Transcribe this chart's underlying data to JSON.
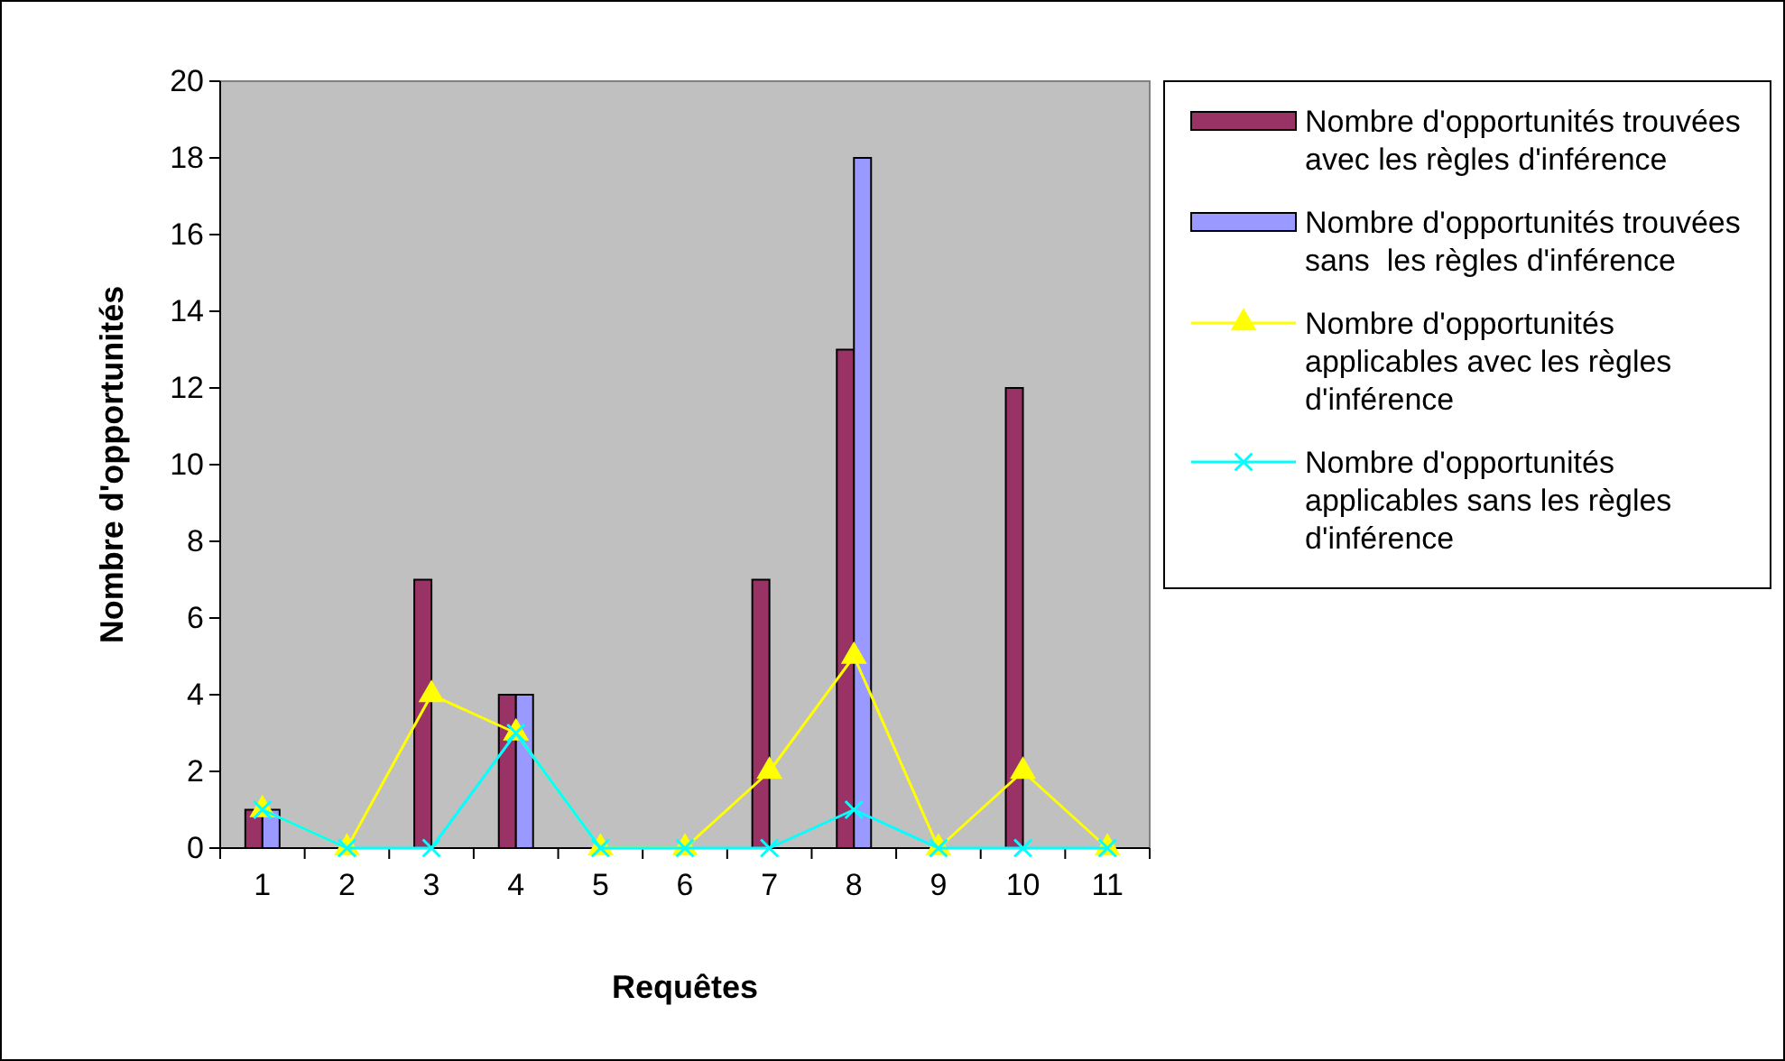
{
  "chart_data": {
    "type": "bar",
    "xlabel": "Requêtes",
    "ylabel": "Nombre d'opportunités",
    "categories": [
      "1",
      "2",
      "3",
      "4",
      "5",
      "6",
      "7",
      "8",
      "9",
      "10",
      "11"
    ],
    "series": [
      {
        "name": "Nombre d'opportunités trouvées avec les règles d'inférence",
        "color": "#993366",
        "values": [
          1,
          0,
          7,
          4,
          0,
          0,
          7,
          13,
          0,
          12,
          0
        ]
      },
      {
        "name": "Nombre d'opportunités trouvées sans  les règles d'inférence",
        "color": "#9999ff",
        "values": [
          1,
          0,
          0,
          4,
          0,
          0,
          0,
          18,
          0,
          0,
          0
        ]
      },
      {
        "name": "Nombre d'opportunités applicables avec les règles d'inférence",
        "type": "line",
        "color": "#ffff00",
        "marker": "triangle",
        "values": [
          1,
          0,
          4,
          3,
          0,
          0,
          2,
          5,
          0,
          2,
          0
        ]
      },
      {
        "name": "Nombre d'opportunités applicables sans les règles d'inférence",
        "type": "line",
        "color": "#00ffff",
        "marker": "cross",
        "values": [
          1,
          0,
          0,
          3,
          0,
          0,
          0,
          1,
          0,
          0,
          0
        ]
      }
    ],
    "ylim": [
      0,
      20
    ],
    "yticks": [
      0,
      2,
      4,
      6,
      8,
      10,
      12,
      14,
      16,
      18,
      20
    ],
    "legend": "right"
  }
}
